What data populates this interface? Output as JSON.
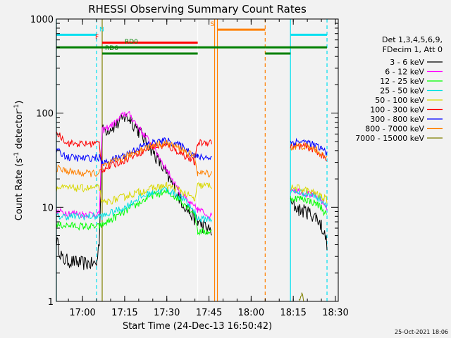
{
  "chart_data": {
    "type": "line",
    "title": "RHESSI Observing Summary Count Rates",
    "xlabel": "Start Time (24-Dec-13 16:50:42)",
    "ylabel_main": "Count Rate (s",
    "ylabel_sup1": "-1",
    "ylabel_mid": " detector",
    "ylabel_sup2": "-1",
    "ylabel_end": ")",
    "y_scale": "log",
    "ylim": [
      1,
      1000
    ],
    "xlim": [
      "16:50:42",
      "18:31:00"
    ],
    "x_ticks": [
      "17:00",
      "17:15",
      "17:30",
      "17:45",
      "18:00",
      "18:15",
      "18:30"
    ],
    "y_ticks": [
      "1",
      "10",
      "100",
      "1000"
    ],
    "legend_header": [
      "Det 1,3,4,5,6,9,",
      "FDecim 1, Att 0"
    ],
    "series": [
      {
        "name": "3 - 6 keV",
        "color": "#000000",
        "points": [
          [
            "16:50:42",
            4.5
          ],
          [
            "16:53",
            2.8
          ],
          [
            "16:58",
            2.6
          ],
          [
            "17:05",
            2.5
          ],
          [
            "17:06",
            4.5
          ],
          [
            "17:07",
            65
          ],
          [
            "17:12",
            75
          ],
          [
            "17:15",
            90
          ],
          [
            "17:17",
            88
          ],
          [
            "17:20",
            65
          ],
          [
            "17:25",
            40
          ],
          [
            "17:30",
            22
          ],
          [
            "17:35",
            12
          ],
          [
            "17:38",
            9
          ],
          [
            "17:41",
            7
          ],
          [
            "17:41",
            7
          ],
          [
            "17:44",
            6
          ],
          [
            "17:46",
            5.5
          ]
        ],
        "segments": [
          [
            "16:50:42",
            "17:46"
          ],
          [
            "18:14",
            "18:27"
          ]
        ],
        "points2": [
          [
            "18:14",
            11
          ],
          [
            "18:17",
            9.5
          ],
          [
            "18:20",
            9
          ],
          [
            "18:23",
            8
          ],
          [
            "18:25",
            6.5
          ],
          [
            "18:27",
            4.2
          ]
        ]
      },
      {
        "name": "6 - 12 keV",
        "color": "#ff00ff",
        "points": [
          [
            "16:50:42",
            9
          ],
          [
            "17:00",
            8.5
          ],
          [
            "17:06",
            8.5
          ],
          [
            "17:07",
            65
          ],
          [
            "17:12",
            80
          ],
          [
            "17:15",
            100
          ],
          [
            "17:17",
            95
          ],
          [
            "17:20",
            70
          ],
          [
            "17:25",
            45
          ],
          [
            "17:30",
            25
          ],
          [
            "17:35",
            14
          ],
          [
            "17:38",
            11
          ],
          [
            "17:41",
            9.5
          ],
          [
            "17:46",
            8
          ]
        ],
        "points2": [
          [
            "18:14",
            16
          ],
          [
            "18:17",
            15
          ],
          [
            "18:20",
            14
          ],
          [
            "18:23",
            13
          ],
          [
            "18:25",
            11.5
          ],
          [
            "18:27",
            10
          ]
        ]
      },
      {
        "name": "12 - 25 keV",
        "color": "#00ff00",
        "points": [
          [
            "16:50:42",
            6.5
          ],
          [
            "17:00",
            6.3
          ],
          [
            "17:06",
            6.2
          ],
          [
            "17:07",
            6.5
          ],
          [
            "17:15",
            9
          ],
          [
            "17:20",
            11
          ],
          [
            "17:25",
            13.5
          ],
          [
            "17:30",
            14.5
          ],
          [
            "17:35",
            12
          ],
          [
            "17:40",
            8.5
          ],
          [
            "17:41",
            5.5
          ],
          [
            "17:46",
            5.5
          ]
        ],
        "points2": [
          [
            "18:14",
            12.5
          ],
          [
            "18:17",
            12.5
          ],
          [
            "18:20",
            12
          ],
          [
            "18:23",
            11
          ],
          [
            "18:25",
            10
          ],
          [
            "18:27",
            8
          ]
        ]
      },
      {
        "name": "25 - 50 keV",
        "color": "#00e0e0",
        "points": [
          [
            "16:50:42",
            8
          ],
          [
            "17:00",
            8
          ],
          [
            "17:06",
            8
          ],
          [
            "17:07",
            8
          ],
          [
            "17:15",
            10
          ],
          [
            "17:20",
            12.5
          ],
          [
            "17:25",
            14.5
          ],
          [
            "17:30",
            15.5
          ],
          [
            "17:35",
            13
          ],
          [
            "17:40",
            9
          ],
          [
            "17:41",
            7.5
          ],
          [
            "17:46",
            7.5
          ]
        ],
        "points2": [
          [
            "18:14",
            14.5
          ],
          [
            "18:17",
            14.5
          ],
          [
            "18:20",
            14
          ],
          [
            "18:23",
            13
          ],
          [
            "18:25",
            12
          ],
          [
            "18:27",
            10.5
          ]
        ]
      },
      {
        "name": "50 - 100 keV",
        "color": "#d8d800",
        "points": [
          [
            "16:50:42",
            16
          ],
          [
            "17:00",
            16
          ],
          [
            "17:06",
            16
          ],
          [
            "17:07",
            11
          ],
          [
            "17:15",
            13
          ],
          [
            "17:20",
            14.5
          ],
          [
            "17:25",
            16
          ],
          [
            "17:30",
            17
          ],
          [
            "17:35",
            15
          ],
          [
            "17:40",
            12
          ],
          [
            "17:41",
            17
          ],
          [
            "17:46",
            17
          ]
        ],
        "points2": [
          [
            "18:14",
            16
          ],
          [
            "18:17",
            16
          ],
          [
            "18:20",
            15
          ],
          [
            "18:23",
            14
          ],
          [
            "18:25",
            13
          ],
          [
            "18:27",
            12
          ]
        ]
      },
      {
        "name": "100 - 300 keV",
        "color": "#ff0000",
        "points": [
          [
            "16:50:42",
            62
          ],
          [
            "16:55",
            48
          ],
          [
            "17:00",
            47
          ],
          [
            "17:06",
            48
          ],
          [
            "17:07",
            25
          ],
          [
            "17:15",
            32
          ],
          [
            "17:20",
            38
          ],
          [
            "17:25",
            44
          ],
          [
            "17:30",
            45
          ],
          [
            "17:35",
            38
          ],
          [
            "17:40",
            30
          ],
          [
            "17:41",
            48
          ],
          [
            "17:46",
            50
          ]
        ],
        "points2": [
          [
            "18:14",
            44
          ],
          [
            "18:17",
            45
          ],
          [
            "18:20",
            44
          ],
          [
            "18:23",
            40
          ],
          [
            "18:25",
            36
          ],
          [
            "18:27",
            31
          ]
        ]
      },
      {
        "name": "300 - 800 keV",
        "color": "#0000ff",
        "points": [
          [
            "16:50:42",
            40
          ],
          [
            "16:55",
            34
          ],
          [
            "17:00",
            33
          ],
          [
            "17:06",
            34
          ],
          [
            "17:07",
            29
          ],
          [
            "17:15",
            36
          ],
          [
            "17:20",
            43
          ],
          [
            "17:25",
            49
          ],
          [
            "17:30",
            51
          ],
          [
            "17:35",
            45
          ],
          [
            "17:40",
            36
          ],
          [
            "17:41",
            34
          ],
          [
            "17:46",
            34
          ]
        ],
        "points2": [
          [
            "18:14",
            49
          ],
          [
            "18:17",
            50
          ],
          [
            "18:20",
            49
          ],
          [
            "18:23",
            45
          ],
          [
            "18:25",
            42
          ],
          [
            "18:27",
            38
          ]
        ]
      },
      {
        "name": "800 - 7000 keV",
        "color": "#ff8000",
        "points": [
          [
            "16:50:42",
            26
          ],
          [
            "16:55",
            24
          ],
          [
            "17:00",
            23
          ],
          [
            "17:06",
            23
          ],
          [
            "17:07",
            27
          ],
          [
            "17:15",
            34
          ],
          [
            "17:20",
            40
          ],
          [
            "17:25",
            46
          ],
          [
            "17:30",
            48
          ],
          [
            "17:35",
            42
          ],
          [
            "17:40",
            34
          ],
          [
            "17:41",
            23
          ],
          [
            "17:46",
            23
          ]
        ],
        "points2": [
          [
            "18:14",
            43
          ],
          [
            "18:17",
            45
          ],
          [
            "18:20",
            44
          ],
          [
            "18:23",
            41
          ],
          [
            "18:25",
            37
          ],
          [
            "18:27",
            32
          ]
        ]
      },
      {
        "name": "7000 - 15000 keV",
        "color": "#808000",
        "points": [],
        "points2": [
          [
            "18:17",
            1.0
          ],
          [
            "18:18",
            1.2
          ],
          [
            "18:19",
            1.0
          ]
        ]
      }
    ],
    "bars": [
      {
        "label": "N",
        "color": "#00e0f0",
        "y": 680,
        "segments": [
          [
            "16:50:42",
            "17:05"
          ],
          [
            "18:14",
            "18:27"
          ]
        ],
        "label_at": "17:05"
      },
      {
        "label": "F",
        "color": "#ff0000",
        "y": 560,
        "segments": [
          [
            "17:07",
            "17:41"
          ]
        ],
        "label_at": "17:07"
      },
      {
        "label": "RD0",
        "color": "#008000",
        "y": 500,
        "segments": [
          [
            "16:50:42",
            "17:41"
          ],
          [
            "17:41",
            "18:05"
          ],
          [
            "18:05",
            "18:27"
          ]
        ],
        "label_at": "17:14"
      },
      {
        "label": "RD6",
        "color": "#008000",
        "y": 430,
        "segments": [
          [
            "17:07",
            "17:41"
          ],
          [
            "18:05",
            "18:14"
          ]
        ],
        "label_at": "17:07"
      },
      {
        "label": "S",
        "color": "#ff8000",
        "y": 770,
        "segments": [
          [
            "17:48",
            "18:05"
          ]
        ],
        "label_at": "17:48"
      }
    ],
    "vlines": [
      {
        "t": "16:50:42",
        "color": "#00e0f0",
        "dashed": false
      },
      {
        "t": "17:05",
        "color": "#00e0f0",
        "dashed": true
      },
      {
        "t": "17:07",
        "color": "#808000",
        "dashed": false
      },
      {
        "t": "17:41",
        "color": "#ffffff",
        "dashed": false
      },
      {
        "t": "17:47",
        "color": "#ff8000",
        "dashed": false
      },
      {
        "t": "17:48",
        "color": "#ff8000",
        "dashed": false
      },
      {
        "t": "18:05",
        "color": "#ff8000",
        "dashed": true
      },
      {
        "t": "18:14",
        "color": "#00e0f0",
        "dashed": false
      },
      {
        "t": "18:27",
        "color": "#00e0f0",
        "dashed": true
      }
    ],
    "grid": false,
    "legend_position": "right"
  },
  "footer": {
    "timestamp": "25-Oct-2021 18:06"
  }
}
